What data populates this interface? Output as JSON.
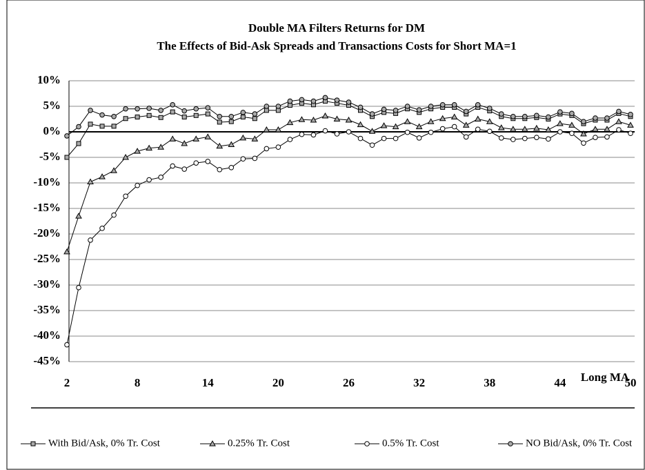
{
  "chart_data": {
    "type": "line",
    "title": "Double MA Filters Returns for DM",
    "subtitle": "The Effects of Bid-Ask Spreads and Transactions Costs for Short MA=1",
    "x_label": "Long MA",
    "x": [
      2,
      3,
      4,
      5,
      6,
      7,
      8,
      9,
      10,
      11,
      12,
      13,
      14,
      15,
      16,
      17,
      18,
      19,
      20,
      21,
      22,
      23,
      24,
      25,
      26,
      27,
      28,
      29,
      30,
      31,
      32,
      33,
      34,
      35,
      36,
      37,
      38,
      39,
      40,
      41,
      42,
      43,
      44,
      45,
      46,
      47,
      48,
      49,
      50
    ],
    "xlim": [
      2,
      50
    ],
    "xticks": [
      2,
      8,
      14,
      20,
      26,
      32,
      38,
      44,
      50
    ],
    "ylim": [
      -45,
      10
    ],
    "yticks": [
      {
        "value": 10,
        "label": "10%"
      },
      {
        "value": 5,
        "label": "5%"
      },
      {
        "value": 0,
        "label": "0%"
      },
      {
        "value": -5,
        "label": "-5%"
      },
      {
        "value": -10,
        "label": "-10%"
      },
      {
        "value": -15,
        "label": "-15%"
      },
      {
        "value": -20,
        "label": "-20%"
      },
      {
        "value": -25,
        "label": "-25%"
      },
      {
        "value": -30,
        "label": "-30%"
      },
      {
        "value": -35,
        "label": "-35%"
      },
      {
        "value": -40,
        "label": "-40%"
      },
      {
        "value": -45,
        "label": "-45%"
      }
    ],
    "grid": true,
    "legend": "bottom",
    "series": [
      {
        "name": "With Bid/Ask, 0% Tr. Cost",
        "color": "#000000",
        "marker": "square",
        "values": [
          -5,
          -2.3,
          1.5,
          1.1,
          1.1,
          2.6,
          2.9,
          3.2,
          2.8,
          3.9,
          2.9,
          3.2,
          3.5,
          1.9,
          2.0,
          2.9,
          2.6,
          4.2,
          4.2,
          5.2,
          5.6,
          5.3,
          6.0,
          5.6,
          5.2,
          4.2,
          3.0,
          3.8,
          3.6,
          4.5,
          3.8,
          4.5,
          4.8,
          4.8,
          3.5,
          4.8,
          4.1,
          3.0,
          2.6,
          2.6,
          2.8,
          2.5,
          3.5,
          3.2,
          1.6,
          2.3,
          2.3,
          3.6,
          3.0
        ]
      },
      {
        "name": "0.25% Tr. Cost",
        "color": "#000000",
        "marker": "triangle",
        "values": [
          -23.5,
          -16.5,
          -9.8,
          -8.8,
          -7.6,
          -5.0,
          -3.8,
          -3.2,
          -3.0,
          -1.4,
          -2.3,
          -1.4,
          -1.0,
          -2.8,
          -2.5,
          -1.2,
          -1.4,
          0.4,
          0.4,
          1.8,
          2.4,
          2.3,
          3.1,
          2.5,
          2.3,
          1.4,
          0.1,
          1.2,
          1.0,
          2.0,
          1.0,
          2.0,
          2.6,
          2.9,
          1.3,
          2.5,
          2.0,
          0.8,
          0.5,
          0.5,
          0.7,
          0.4,
          1.6,
          1.3,
          -0.4,
          0.5,
          0.5,
          2.0,
          1.3
        ]
      },
      {
        "name": "0.5% Tr. Cost",
        "color": "#000000",
        "marker": "circle",
        "values": [
          -41.7,
          -30.5,
          -21.2,
          -18.9,
          -16.3,
          -12.6,
          -10.5,
          -9.4,
          -8.9,
          -6.7,
          -7.3,
          -6.1,
          -5.8,
          -7.4,
          -7.0,
          -5.3,
          -5.2,
          -3.3,
          -3.0,
          -1.5,
          -0.5,
          -0.6,
          0.2,
          -0.4,
          0.0,
          -1.3,
          -2.6,
          -1.3,
          -1.3,
          -0.1,
          -1.2,
          -0.1,
          0.6,
          1.0,
          -1.0,
          0.5,
          0.1,
          -1.2,
          -1.5,
          -1.3,
          -1.1,
          -1.4,
          0.0,
          -0.3,
          -2.2,
          -1.1,
          -1.0,
          0.4,
          -0.3
        ]
      },
      {
        "name": "NO Bid/Ask, 0% Tr. Cost",
        "color": "#000000",
        "marker": "circle-gray",
        "values": [
          -0.8,
          1.0,
          4.2,
          3.3,
          3.0,
          4.5,
          4.5,
          4.6,
          4.2,
          5.3,
          4.1,
          4.5,
          4.7,
          3.0,
          3.0,
          3.8,
          3.5,
          5.0,
          5.0,
          6.0,
          6.3,
          6.0,
          6.7,
          6.2,
          5.8,
          4.8,
          3.5,
          4.4,
          4.2,
          5.0,
          4.3,
          5.0,
          5.3,
          5.3,
          4.0,
          5.3,
          4.6,
          3.5,
          3.0,
          3.0,
          3.2,
          2.9,
          3.9,
          3.6,
          2.0,
          2.7,
          2.7,
          4.0,
          3.4
        ]
      }
    ]
  }
}
